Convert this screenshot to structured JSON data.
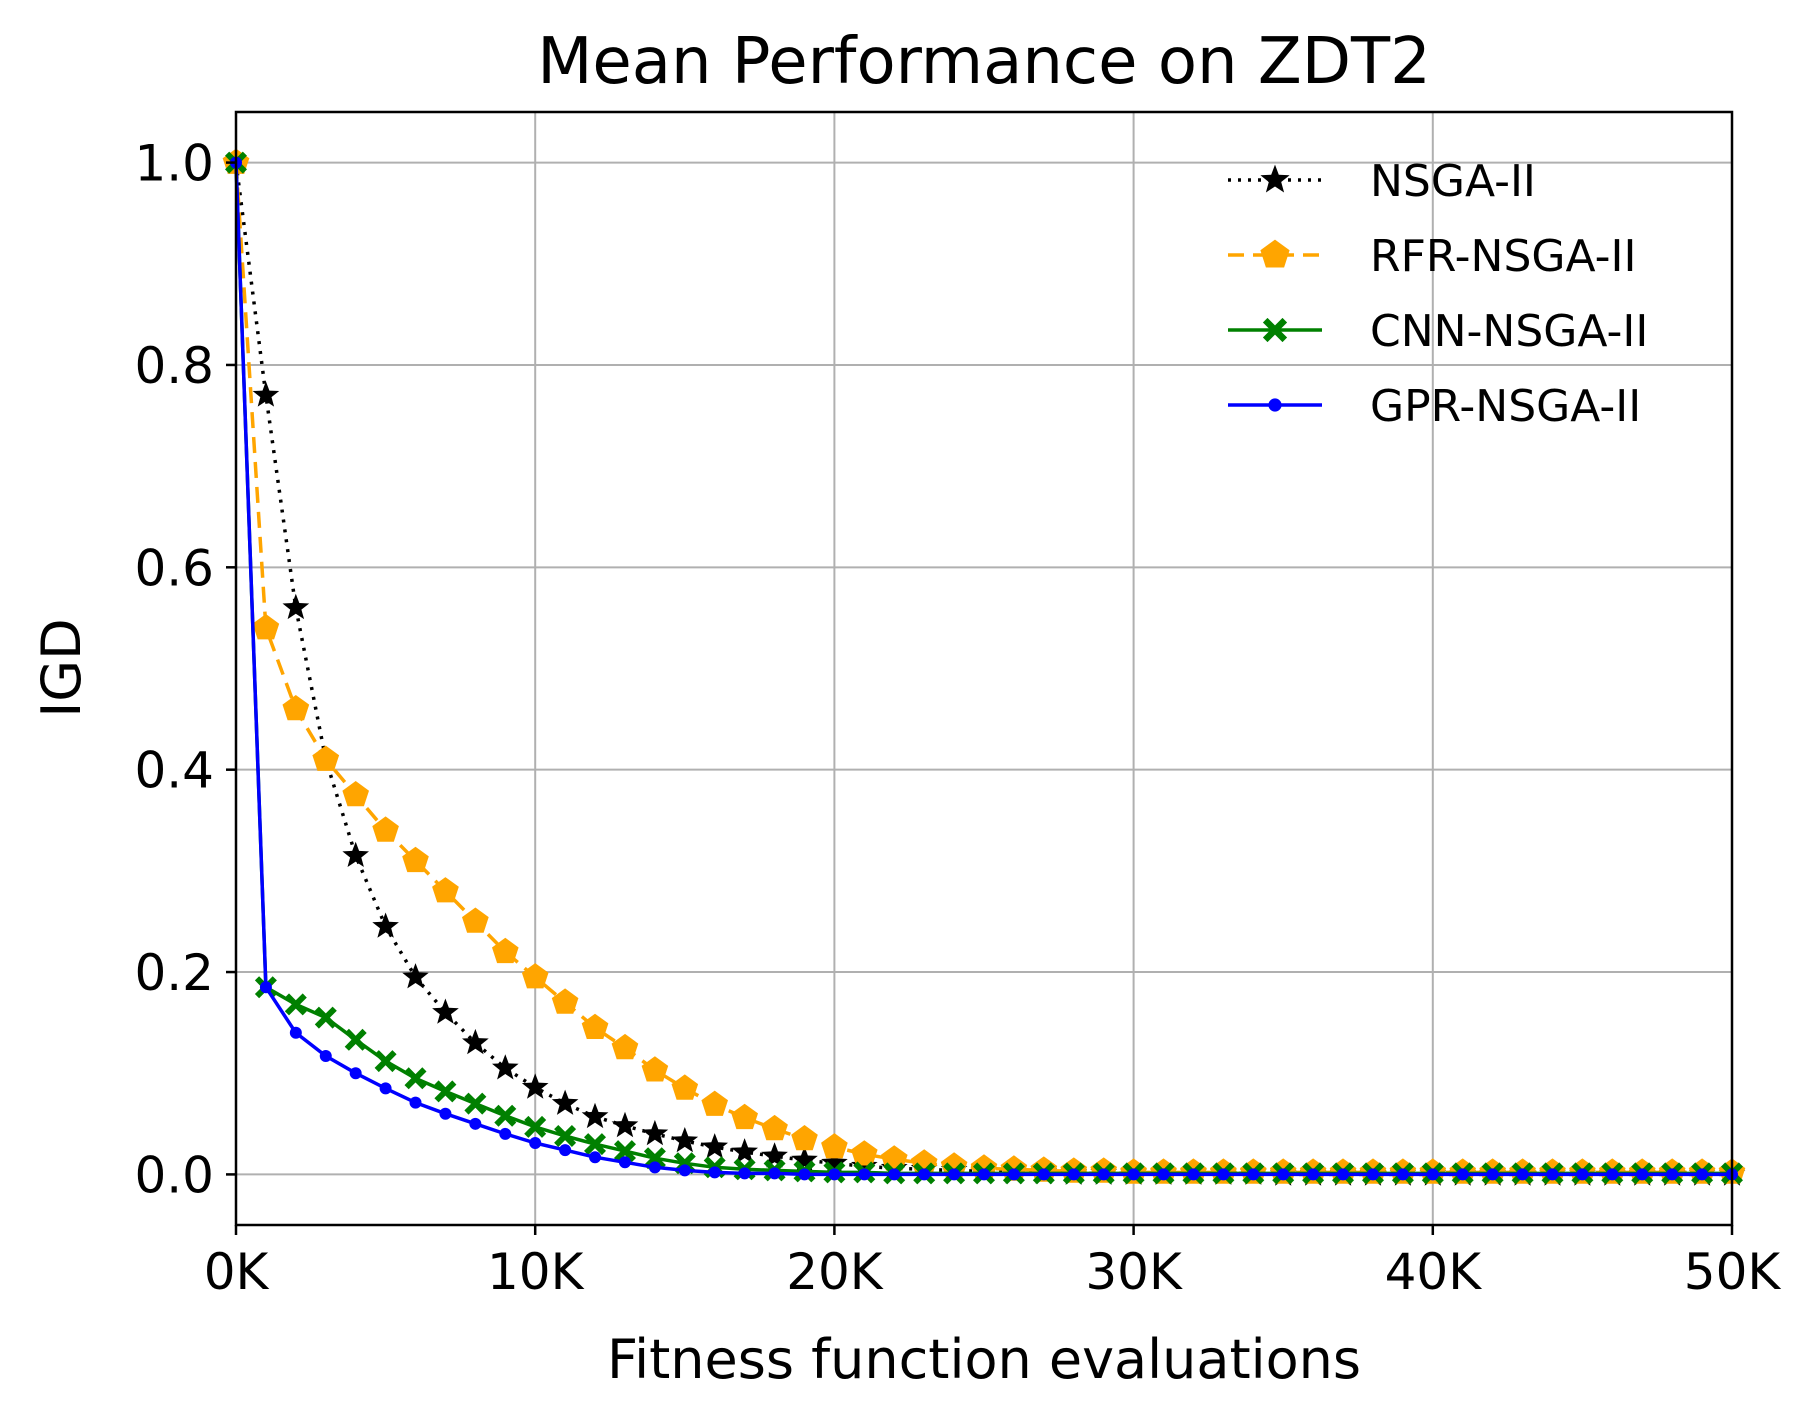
{
  "chart_data": {
    "type": "line",
    "title": "Mean Performance on ZDT2",
    "xlabel": "Fitness function evaluations",
    "ylabel": "IGD",
    "xlim": [
      0,
      50000
    ],
    "ylim": [
      -0.05,
      1.05
    ],
    "grid": true,
    "legend_position": "top-right",
    "x_ticks": [
      {
        "value": 0,
        "label": "0K"
      },
      {
        "value": 10000,
        "label": "10K"
      },
      {
        "value": 20000,
        "label": "20K"
      },
      {
        "value": 30000,
        "label": "30K"
      },
      {
        "value": 40000,
        "label": "40K"
      },
      {
        "value": 50000,
        "label": "50K"
      }
    ],
    "y_ticks": [
      {
        "value": 0.0,
        "label": "0.0"
      },
      {
        "value": 0.2,
        "label": "0.2"
      },
      {
        "value": 0.4,
        "label": "0.4"
      },
      {
        "value": 0.6,
        "label": "0.6"
      },
      {
        "value": 0.8,
        "label": "0.8"
      },
      {
        "value": 1.0,
        "label": "1.0"
      }
    ],
    "x": [
      0,
      1000,
      2000,
      3000,
      4000,
      5000,
      6000,
      7000,
      8000,
      9000,
      10000,
      11000,
      12000,
      13000,
      14000,
      15000,
      16000,
      17000,
      18000,
      19000,
      20000,
      21000,
      22000,
      23000,
      24000,
      25000,
      26000,
      27000,
      28000,
      29000,
      30000,
      31000,
      32000,
      33000,
      34000,
      35000,
      36000,
      37000,
      38000,
      39000,
      40000,
      41000,
      42000,
      43000,
      44000,
      45000,
      46000,
      47000,
      48000,
      49000,
      50000
    ],
    "series": [
      {
        "name": "NSGA-II",
        "color": "#000000",
        "line_style": "dotted",
        "marker": "star",
        "values": [
          1.0,
          0.77,
          0.56,
          0.41,
          0.315,
          0.245,
          0.195,
          0.16,
          0.13,
          0.105,
          0.086,
          0.07,
          0.057,
          0.048,
          0.04,
          0.033,
          0.027,
          0.022,
          0.018,
          0.014,
          0.011,
          0.008,
          0.006,
          0.005,
          0.004,
          0.003,
          0.002,
          0.002,
          0.001,
          0.001,
          0.001,
          0.001,
          0.001,
          0.001,
          0.001,
          0.0,
          0.0,
          0.0,
          0.0,
          0.0,
          0.0,
          0.0,
          0.0,
          0.0,
          0.0,
          0.0,
          0.0,
          0.0,
          0.0,
          0.0,
          0.0
        ]
      },
      {
        "name": "RFR-NSGA-II",
        "color": "#FFA500",
        "line_style": "dashed",
        "marker": "pentagon",
        "values": [
          1.0,
          0.54,
          0.46,
          0.41,
          0.375,
          0.34,
          0.31,
          0.28,
          0.25,
          0.22,
          0.195,
          0.17,
          0.145,
          0.125,
          0.103,
          0.085,
          0.069,
          0.056,
          0.045,
          0.035,
          0.027,
          0.02,
          0.015,
          0.011,
          0.008,
          0.006,
          0.005,
          0.004,
          0.003,
          0.003,
          0.002,
          0.002,
          0.002,
          0.002,
          0.002,
          0.002,
          0.002,
          0.002,
          0.002,
          0.002,
          0.002,
          0.002,
          0.002,
          0.002,
          0.002,
          0.002,
          0.002,
          0.002,
          0.002,
          0.002,
          0.002
        ]
      },
      {
        "name": "CNN-NSGA-II",
        "color": "#008000",
        "line_style": "solid",
        "marker": "x",
        "values": [
          1.0,
          0.185,
          0.168,
          0.155,
          0.133,
          0.112,
          0.095,
          0.082,
          0.07,
          0.058,
          0.047,
          0.038,
          0.03,
          0.023,
          0.016,
          0.011,
          0.007,
          0.005,
          0.004,
          0.003,
          0.002,
          0.002,
          0.001,
          0.001,
          0.001,
          0.001,
          0.001,
          0.001,
          0.001,
          0.001,
          0.001,
          0.001,
          0.001,
          0.001,
          0.001,
          0.001,
          0.001,
          0.001,
          0.001,
          0.001,
          0.001,
          0.001,
          0.001,
          0.001,
          0.001,
          0.001,
          0.001,
          0.001,
          0.001,
          0.001,
          0.001
        ]
      },
      {
        "name": "GPR-NSGA-II",
        "color": "#0000FF",
        "line_style": "solid",
        "marker": "point",
        "values": [
          1.0,
          0.185,
          0.14,
          0.117,
          0.1,
          0.085,
          0.071,
          0.06,
          0.05,
          0.04,
          0.031,
          0.024,
          0.017,
          0.012,
          0.007,
          0.004,
          0.002,
          0.001,
          0.001,
          0.0,
          0.0,
          0.0,
          0.0,
          0.0,
          0.0,
          0.0,
          0.0,
          0.0,
          0.0,
          0.0,
          0.0,
          0.0,
          0.0,
          0.0,
          0.0,
          0.0,
          0.0,
          0.0,
          0.0,
          0.0,
          0.0,
          0.0,
          0.0,
          0.0,
          0.0,
          0.0,
          0.0,
          0.0,
          0.0,
          0.0,
          0.0
        ]
      }
    ]
  }
}
